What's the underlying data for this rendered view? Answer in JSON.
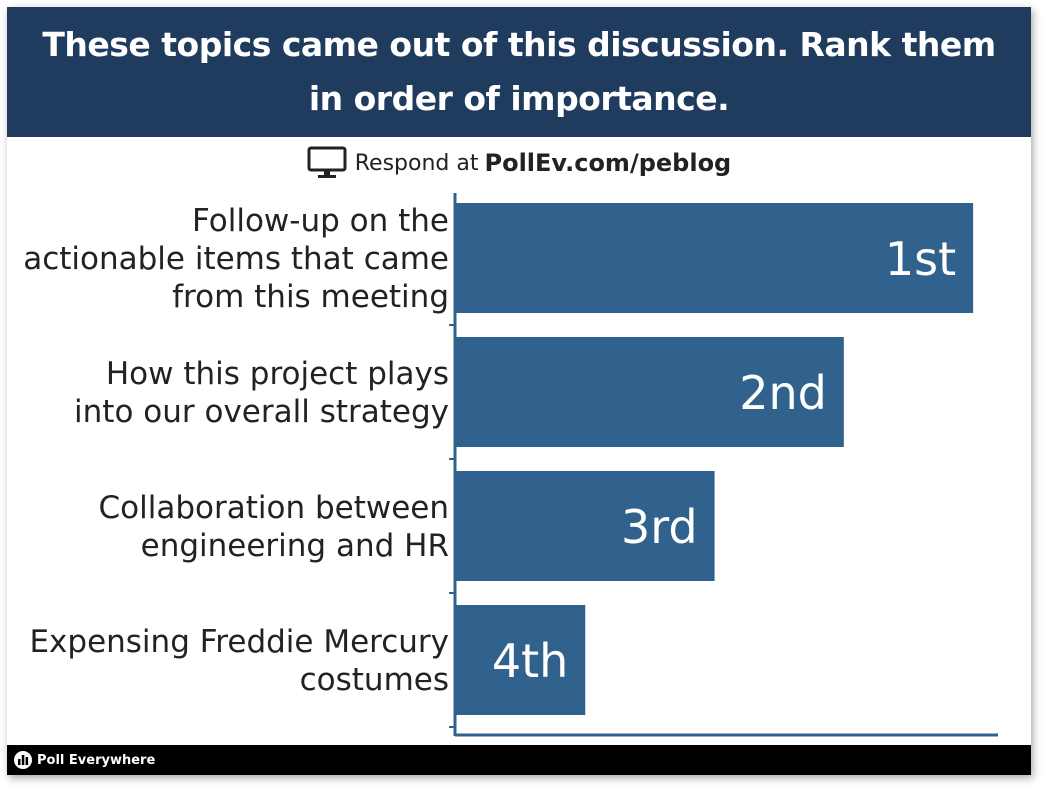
{
  "header": {
    "title": "These topics came out of this discussion. Rank them in order of importance."
  },
  "respond": {
    "prefix": "Respond at",
    "url": "PollEv.com/peblog",
    "icon": "monitor-icon"
  },
  "footer": {
    "brand": "Poll Everywhere",
    "icon": "poll-everywhere-logo"
  },
  "colors": {
    "header_bg": "#1f3c5e",
    "bar": "#31628e",
    "bar_label_inside": "#ffffff",
    "bar_label_outside": "#222222"
  },
  "chart_data": {
    "type": "bar",
    "orientation": "horizontal",
    "categories": [
      "Follow-up on the actionable items that came from this meeting",
      "How this project plays into our overall strategy",
      "Collaboration between engineering and HR",
      "Expensing Freddie Mercury costumes"
    ],
    "values": [
      4,
      3,
      2,
      1
    ],
    "data_labels": [
      "1st",
      "2nd",
      "3rd",
      "4th"
    ],
    "xlim": [
      0,
      4.2
    ],
    "grid": false,
    "legend": "none"
  }
}
